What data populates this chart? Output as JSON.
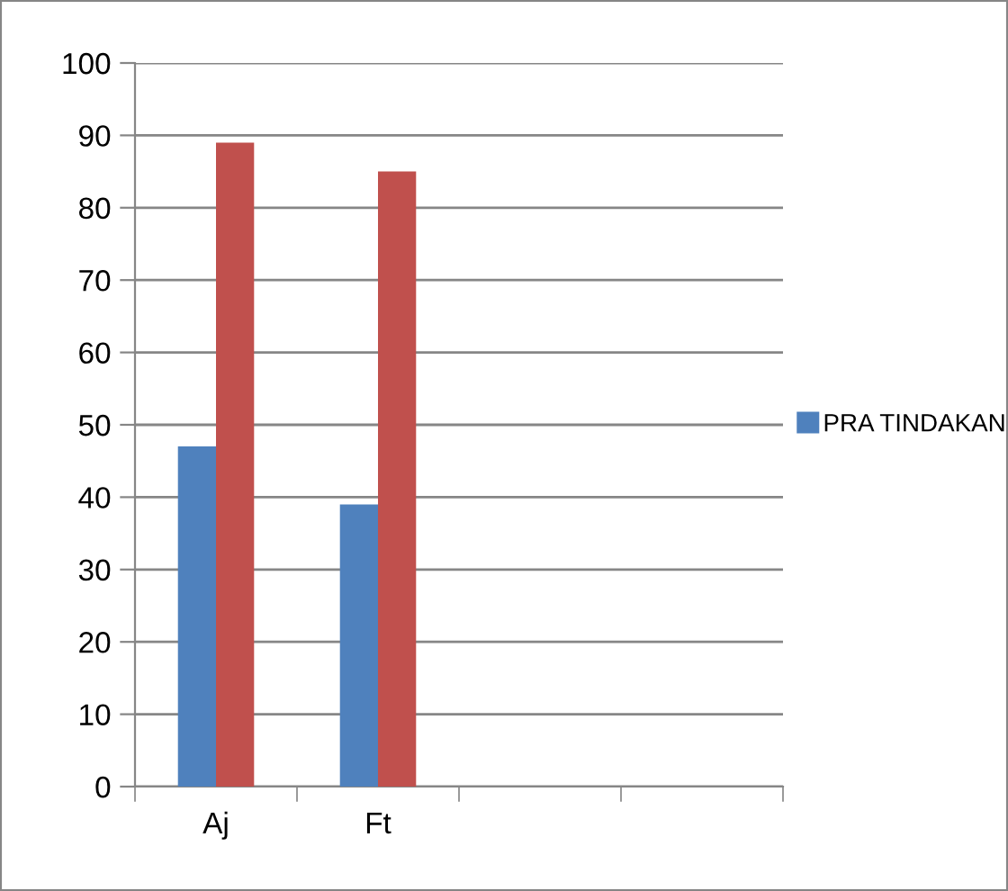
{
  "chart_data": {
    "type": "bar",
    "categories": [
      "Aj",
      "Ft",
      null,
      null
    ],
    "series": [
      {
        "name": "PRA TINDAKAN",
        "color": "#4f81bd",
        "values": [
          47,
          39,
          null,
          null
        ]
      },
      {
        "color": "#c0504d",
        "values": [
          89,
          85,
          null,
          null
        ]
      }
    ],
    "ylim": [
      0,
      100
    ],
    "yticks": [
      0,
      10,
      20,
      30,
      40,
      50,
      60,
      70,
      80,
      90,
      100
    ],
    "grid": "y",
    "legend": "right"
  }
}
